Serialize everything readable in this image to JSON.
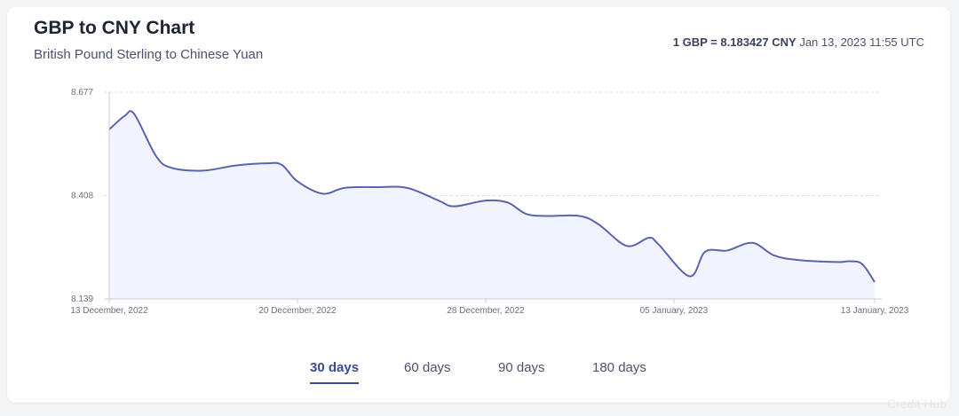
{
  "header": {
    "title": "GBP to CNY Chart",
    "subtitle": "British Pound Sterling to Chinese Yuan",
    "rate_value": "1 GBP = 8.183427 CNY",
    "rate_time": "Jan 13, 2023 11:55 UTC"
  },
  "tabs": [
    {
      "label": "30 days",
      "active": true
    },
    {
      "label": "60 days",
      "active": false
    },
    {
      "label": "90 days",
      "active": false
    },
    {
      "label": "180 days",
      "active": false
    }
  ],
  "watermark": "Credit Hub",
  "colors": {
    "line": "#5a63ad",
    "fill": "#f1f4ff",
    "grid": "#d8dae0",
    "axis": "#c9ccd4",
    "tick_text": "#6b6f7d",
    "active_tab": "#3d4a8f"
  },
  "chart_data": {
    "type": "area",
    "title": "GBP to CNY Chart",
    "subtitle": "British Pound Sterling to Chinese Yuan",
    "xlabel": "",
    "ylabel": "",
    "x_tick_labels": [
      "13 December, 2022",
      "20 December, 2022",
      "28 December, 2022",
      "05 January, 2023",
      "13 January, 2023"
    ],
    "y_tick_labels": [
      "8.677",
      "8.408",
      "8.139"
    ],
    "ylim": [
      8.139,
      8.677
    ],
    "grid": true,
    "legend": "none",
    "series": [
      {
        "points": [
          [
            0,
            8.58
          ],
          [
            0.5,
            8.616
          ],
          [
            0.8,
            8.62
          ],
          [
            1.5,
            8.51
          ],
          [
            2,
            8.48
          ],
          [
            3,
            8.473
          ],
          [
            4,
            8.486
          ],
          [
            5,
            8.492
          ],
          [
            5.5,
            8.488
          ],
          [
            6,
            8.445
          ],
          [
            6.8,
            8.413
          ],
          [
            7.5,
            8.428
          ],
          [
            8.5,
            8.43
          ],
          [
            9.5,
            8.428
          ],
          [
            10.5,
            8.395
          ],
          [
            11,
            8.38
          ],
          [
            12,
            8.395
          ],
          [
            12.7,
            8.39
          ],
          [
            13.3,
            8.36
          ],
          [
            14,
            8.355
          ],
          [
            15,
            8.355
          ],
          [
            15.6,
            8.333
          ],
          [
            16.5,
            8.277
          ],
          [
            17.2,
            8.298
          ],
          [
            17.5,
            8.282
          ],
          [
            18.5,
            8.198
          ],
          [
            19,
            8.262
          ],
          [
            19.7,
            8.265
          ],
          [
            20.5,
            8.285
          ],
          [
            21.2,
            8.252
          ],
          [
            22,
            8.24
          ],
          [
            23.2,
            8.235
          ],
          [
            23.6,
            8.237
          ],
          [
            24,
            8.23
          ],
          [
            24.4,
            8.183
          ]
        ]
      }
    ]
  }
}
